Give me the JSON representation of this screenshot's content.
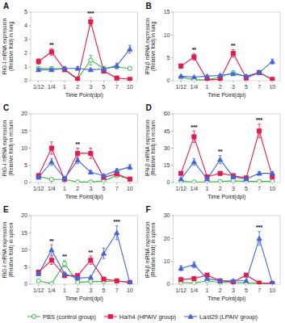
{
  "chart_data": [
    {
      "type": "line",
      "title": "A",
      "x_label": "Time Point(dpi)",
      "y_label": "RIG-I mRNA expression\n(Relative fold) in lung",
      "categories": [
        "1/12",
        "1/4",
        "1",
        "2",
        "3",
        "5",
        "7",
        "10"
      ],
      "ylim": [
        0,
        5
      ],
      "yticks": [
        0,
        1,
        2,
        3,
        4,
        5
      ],
      "grid": false,
      "legend": "bottom",
      "series": [
        {
          "name": "PBS (control group)",
          "color": "#3cb44b",
          "marker": "open-circle",
          "values": [
            0.9,
            0.9,
            0.85,
            0.15,
            1.5,
            0.9,
            1.0,
            0.9
          ],
          "errors": [
            0.1,
            0.1,
            0.1,
            0.05,
            0.35,
            0.12,
            0.12,
            0.12
          ]
        },
        {
          "name": "Ha/h4 (HPAIV group)",
          "color": "#e6194b",
          "marker": "square",
          "values": [
            1.4,
            2.1,
            0.8,
            0.1,
            4.3,
            0.7,
            0.2,
            0.1
          ],
          "errors": [
            0.2,
            0.25,
            0.12,
            0.03,
            0.3,
            0.12,
            0.07,
            0.03
          ]
        },
        {
          "name": "La/d29 (LPAIV group)",
          "color": "#4363d8",
          "marker": "triangle",
          "values": [
            0.8,
            0.8,
            0.9,
            0.9,
            0.8,
            0.85,
            1.1,
            2.3
          ],
          "errors": [
            0.1,
            0.1,
            0.12,
            0.12,
            0.08,
            0.12,
            0.18,
            0.28
          ]
        }
      ],
      "annotations": [
        {
          "x": "1/4",
          "text": "**"
        },
        {
          "x": "3",
          "text": "***"
        }
      ]
    },
    {
      "type": "line",
      "title": "B",
      "x_label": "Time Point(dpi)",
      "y_label": "IFN-β mRNA expression\n(Relative fold) in lung",
      "categories": [
        "1/12",
        "1/4",
        "1",
        "2",
        "3",
        "5",
        "7",
        "10"
      ],
      "ylim": [
        0,
        15
      ],
      "yticks": [
        0,
        5,
        10,
        15
      ],
      "grid": false,
      "series": [
        {
          "color": "#3cb44b",
          "marker": "open-circle",
          "values": [
            0.8,
            0.2,
            0.2,
            0.8,
            1.8,
            0.9,
            1.8,
            0.2
          ],
          "errors": [
            0.12,
            0.05,
            0.05,
            0.12,
            0.25,
            0.12,
            0.25,
            0.05
          ]
        },
        {
          "color": "#e6194b",
          "marker": "square",
          "values": [
            3.2,
            5.2,
            0.2,
            0.3,
            6.0,
            0.6,
            1.8,
            0.3
          ],
          "errors": [
            0.5,
            0.7,
            0.05,
            0.08,
            0.8,
            0.1,
            0.3,
            0.08
          ]
        },
        {
          "color": "#4363d8",
          "marker": "triangle",
          "values": [
            1.0,
            0.8,
            1.0,
            1.2,
            1.5,
            1.0,
            1.8,
            4.2
          ],
          "errors": [
            0.15,
            0.1,
            0.15,
            0.2,
            0.25,
            0.15,
            0.25,
            0.55
          ]
        }
      ],
      "annotations": [
        {
          "x": "1/4",
          "text": "**"
        },
        {
          "x": "3",
          "text": "**"
        }
      ]
    },
    {
      "type": "line",
      "title": "C",
      "x_label": "Time Point(dpi)",
      "y_label": "RIG-I mRNA expression\n(Relative fold) in rectum",
      "categories": [
        "1/12",
        "1/4",
        "1",
        "2",
        "3",
        "5",
        "7",
        "10"
      ],
      "ylim": [
        0,
        20
      ],
      "yticks": [
        0,
        5,
        10,
        15,
        20
      ],
      "grid": false,
      "series": [
        {
          "color": "#3cb44b",
          "marker": "open-circle",
          "values": [
            1.8,
            0.9,
            0.9,
            0.15,
            0.15,
            0.5,
            2.0,
            1.0
          ],
          "errors": [
            0.25,
            0.12,
            0.12,
            0.05,
            0.05,
            0.08,
            0.3,
            0.15
          ]
        },
        {
          "color": "#e6194b",
          "marker": "square",
          "values": [
            2.0,
            10.0,
            0.9,
            8.5,
            8.5,
            1.5,
            2.5,
            1.0
          ],
          "errors": [
            0.4,
            1.8,
            0.2,
            1.5,
            1.5,
            0.3,
            0.4,
            0.2
          ]
        },
        {
          "color": "#4363d8",
          "marker": "triangle",
          "values": [
            1.5,
            6.0,
            1.2,
            6.5,
            3.0,
            2.0,
            3.5,
            4.5
          ],
          "errors": [
            0.25,
            1.0,
            0.2,
            1.0,
            0.5,
            0.35,
            0.55,
            0.7
          ]
        }
      ],
      "annotations": [
        {
          "x": "2",
          "text": "**"
        }
      ]
    },
    {
      "type": "line",
      "title": "D",
      "x_label": "Time Point(dpi)",
      "y_label": "IFN-β mRNA expression\n(Relative fold) in rectum",
      "categories": [
        "1/12",
        "1/4",
        "1",
        "2",
        "3",
        "5",
        "7",
        "10"
      ],
      "ylim": [
        0,
        60
      ],
      "yticks": [
        0,
        15,
        30,
        45,
        60
      ],
      "grid": false,
      "series": [
        {
          "color": "#3cb44b",
          "marker": "open-circle",
          "values": [
            1.0,
            0.5,
            0.5,
            0.8,
            1.5,
            1.0,
            1.0,
            1.0
          ],
          "errors": [
            0.2,
            0.1,
            0.1,
            0.1,
            0.25,
            0.15,
            0.15,
            0.15
          ]
        },
        {
          "color": "#e6194b",
          "marker": "square",
          "values": [
            8.0,
            40.0,
            5.0,
            8.0,
            6.0,
            4.0,
            45.0,
            5.0
          ],
          "errors": [
            1.5,
            5.0,
            1.0,
            1.5,
            1.2,
            0.8,
            6.0,
            1.0
          ]
        },
        {
          "color": "#4363d8",
          "marker": "triangle",
          "values": [
            3.0,
            18.0,
            3.0,
            20.0,
            5.0,
            3.0,
            8.0,
            8.0
          ],
          "errors": [
            0.6,
            3.0,
            0.6,
            3.5,
            1.0,
            0.6,
            1.5,
            1.5
          ]
        }
      ],
      "annotations": [
        {
          "x": "1/4",
          "text": "***"
        },
        {
          "x": "2",
          "text": "**"
        },
        {
          "x": "7",
          "text": "***"
        }
      ]
    },
    {
      "type": "line",
      "title": "E",
      "x_label": "Time Point(dpi)",
      "y_label": "RIG-I mRNA expression\n(Relative fold) in spleen",
      "categories": [
        "1/12",
        "1/4",
        "1",
        "2",
        "3",
        "5",
        "7",
        "10"
      ],
      "ylim": [
        0,
        20
      ],
      "yticks": [
        0,
        5,
        10,
        15,
        20
      ],
      "grid": false,
      "series": [
        {
          "color": "#3cb44b",
          "marker": "open-circle",
          "values": [
            1.0,
            0.15,
            6.0,
            0.5,
            0.8,
            0.8,
            1.0,
            0.5
          ],
          "errors": [
            0.15,
            0.03,
            0.9,
            0.08,
            0.12,
            0.12,
            0.15,
            0.08
          ]
        },
        {
          "color": "#e6194b",
          "marker": "square",
          "values": [
            3.5,
            7.0,
            2.5,
            2.5,
            7.0,
            1.5,
            1.0,
            0.5
          ],
          "errors": [
            0.55,
            1.2,
            0.45,
            0.45,
            1.2,
            0.3,
            0.18,
            0.08
          ]
        },
        {
          "color": "#4363d8",
          "marker": "triangle",
          "values": [
            3.0,
            10.0,
            3.0,
            1.8,
            2.0,
            9.0,
            15.0,
            0.5
          ],
          "errors": [
            0.5,
            1.5,
            0.5,
            0.3,
            0.35,
            1.5,
            2.0,
            0.08
          ]
        }
      ],
      "annotations": [
        {
          "x": "1/4",
          "text": "**"
        },
        {
          "x": "1",
          "text": "**"
        },
        {
          "x": "3",
          "text": "**"
        },
        {
          "x": "7",
          "text": "***"
        }
      ]
    },
    {
      "type": "line",
      "title": "F",
      "x_label": "Time Point(dpi)",
      "y_label": "IFN-β mRNA expression\n(Relative fold) in spleen",
      "categories": [
        "1/12",
        "1/4",
        "1",
        "2",
        "3",
        "5",
        "7",
        "10"
      ],
      "ylim": [
        0,
        30
      ],
      "yticks": [
        0,
        10,
        20,
        30
      ],
      "grid": false,
      "series": [
        {
          "color": "#3cb44b",
          "marker": "open-circle",
          "values": [
            0.8,
            0.5,
            1.5,
            0.8,
            0.8,
            0.5,
            0.5,
            0.3
          ],
          "errors": [
            0.12,
            0.08,
            0.25,
            0.12,
            0.12,
            0.08,
            0.08,
            0.05
          ]
        },
        {
          "color": "#e6194b",
          "marker": "square",
          "values": [
            2.0,
            2.5,
            4.0,
            1.5,
            1.0,
            4.0,
            0.5,
            0.3
          ],
          "errors": [
            0.35,
            0.45,
            0.65,
            0.28,
            0.18,
            0.65,
            0.08,
            0.05
          ]
        },
        {
          "color": "#4363d8",
          "marker": "triangle",
          "values": [
            7.0,
            8.5,
            2.5,
            1.5,
            1.5,
            1.5,
            20.0,
            0.5
          ],
          "errors": [
            1.1,
            1.3,
            0.45,
            0.28,
            0.28,
            0.28,
            3.0,
            0.08
          ]
        }
      ],
      "annotations": [
        {
          "x": "7",
          "text": "***"
        }
      ]
    }
  ]
}
